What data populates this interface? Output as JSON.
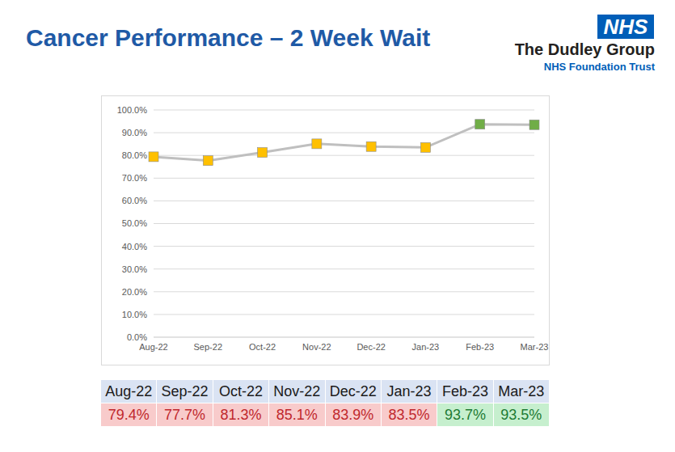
{
  "chart_data": {
    "type": "line",
    "title": "Cancer Performance – 2 Week Wait",
    "categories": [
      "Aug-22",
      "Sep-22",
      "Oct-22",
      "Nov-22",
      "Dec-22",
      "Jan-23",
      "Feb-23",
      "Mar-23"
    ],
    "values": [
      79.4,
      77.7,
      81.3,
      85.1,
      83.9,
      83.5,
      93.7,
      93.5
    ],
    "color": "#bfbfbf",
    "colors": [
      "#ffc000",
      "#ffc000",
      "#ffc000",
      "#ffc000",
      "#ffc000",
      "#ffc000",
      "#70ad47",
      "#70ad47"
    ],
    "marker": "square",
    "ylim": [
      0,
      100
    ],
    "yticks": [
      {
        "value": 0,
        "label": "0.0%"
      },
      {
        "value": 10,
        "label": "10.0%"
      },
      {
        "value": 20,
        "label": "20.0%"
      },
      {
        "value": 30,
        "label": "30.0%"
      },
      {
        "value": 40,
        "label": "40.0%"
      },
      {
        "value": 50,
        "label": "50.0%"
      },
      {
        "value": 60,
        "label": "60.0%"
      },
      {
        "value": 70,
        "label": "70.0%"
      },
      {
        "value": 80,
        "label": "80.0%"
      },
      {
        "value": 90,
        "label": "90.0%"
      },
      {
        "value": 100,
        "label": "100.0%"
      }
    ],
    "grid": true
  },
  "logo": {
    "badge": "NHS",
    "name": "The Dudley Group",
    "subtitle": "NHS Foundation Trust"
  },
  "table": {
    "columns": [
      "Aug-22",
      "Sep-22",
      "Oct-22",
      "Nov-22",
      "Dec-22",
      "Jan-23",
      "Feb-23",
      "Mar-23"
    ],
    "rows": [
      [
        "79.4%",
        "77.7%",
        "81.3%",
        "85.1%",
        "83.9%",
        "83.5%",
        "93.7%",
        "93.5%"
      ]
    ],
    "colors": [
      "#f8cbcb",
      "#f8cbcb",
      "#f8cbcb",
      "#f8cbcb",
      "#f8cbcb",
      "#f8cbcb",
      "#c6efce",
      "#c6efce"
    ]
  }
}
